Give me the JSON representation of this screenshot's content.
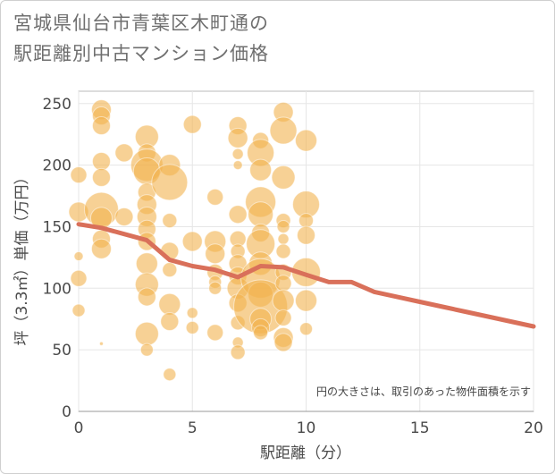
{
  "title_line1": "宮城県仙台市青葉区木町通の",
  "title_line2": "駅距離別中古マンション価格",
  "colors": {
    "bubble": "#f2b24f",
    "line": "#d9705a",
    "grid": "#e6e6e6",
    "frame": "#bbbbbb"
  },
  "chart_data": {
    "type": "scatter",
    "title": "宮城県仙台市青葉区木町通の駅距離別中古マンション価格",
    "xlabel": "駅距離（分）",
    "ylabel": "坪（3.3㎡）単価（万円）",
    "xlim": [
      0,
      20
    ],
    "ylim": [
      0,
      260
    ],
    "xticks": [
      0,
      5,
      10,
      15,
      20
    ],
    "yticks": [
      0,
      50,
      100,
      150,
      200,
      250
    ],
    "grid": true,
    "note": "円の大きさは、取引のあった物件面積を示す",
    "bubbles": [
      {
        "x": 0,
        "y": 192,
        "r": 9
      },
      {
        "x": 0,
        "y": 162,
        "r": 11
      },
      {
        "x": 0,
        "y": 126,
        "r": 5
      },
      {
        "x": 0,
        "y": 108,
        "r": 9
      },
      {
        "x": 0,
        "y": 82,
        "r": 7
      },
      {
        "x": 1,
        "y": 245,
        "r": 11
      },
      {
        "x": 1,
        "y": 240,
        "r": 10
      },
      {
        "x": 1,
        "y": 232,
        "r": 10
      },
      {
        "x": 1,
        "y": 203,
        "r": 10
      },
      {
        "x": 1,
        "y": 190,
        "r": 10
      },
      {
        "x": 1,
        "y": 164,
        "r": 19
      },
      {
        "x": 1,
        "y": 157,
        "r": 12
      },
      {
        "x": 1,
        "y": 140,
        "r": 10
      },
      {
        "x": 1,
        "y": 132,
        "r": 11
      },
      {
        "x": 1,
        "y": 55,
        "r": 2
      },
      {
        "x": 2,
        "y": 210,
        "r": 10
      },
      {
        "x": 2,
        "y": 158,
        "r": 10
      },
      {
        "x": 3,
        "y": 223,
        "r": 13
      },
      {
        "x": 3,
        "y": 210,
        "r": 10
      },
      {
        "x": 3,
        "y": 200,
        "r": 18
      },
      {
        "x": 3,
        "y": 195,
        "r": 15
      },
      {
        "x": 3,
        "y": 178,
        "r": 10
      },
      {
        "x": 3,
        "y": 168,
        "r": 11
      },
      {
        "x": 3,
        "y": 158,
        "r": 11
      },
      {
        "x": 3,
        "y": 148,
        "r": 10
      },
      {
        "x": 3,
        "y": 138,
        "r": 10
      },
      {
        "x": 3,
        "y": 120,
        "r": 12
      },
      {
        "x": 3,
        "y": 103,
        "r": 13
      },
      {
        "x": 3,
        "y": 93,
        "r": 10
      },
      {
        "x": 3,
        "y": 63,
        "r": 13
      },
      {
        "x": 3,
        "y": 50,
        "r": 7
      },
      {
        "x": 4,
        "y": 200,
        "r": 12
      },
      {
        "x": 4,
        "y": 186,
        "r": 20
      },
      {
        "x": 4,
        "y": 155,
        "r": 8
      },
      {
        "x": 4,
        "y": 130,
        "r": 10
      },
      {
        "x": 4,
        "y": 115,
        "r": 8
      },
      {
        "x": 4,
        "y": 87,
        "r": 12
      },
      {
        "x": 4,
        "y": 73,
        "r": 10
      },
      {
        "x": 4,
        "y": 30,
        "r": 7
      },
      {
        "x": 5,
        "y": 233,
        "r": 10
      },
      {
        "x": 5,
        "y": 138,
        "r": 11
      },
      {
        "x": 5,
        "y": 80,
        "r": 6
      },
      {
        "x": 5,
        "y": 68,
        "r": 7
      },
      {
        "x": 6,
        "y": 174,
        "r": 9
      },
      {
        "x": 6,
        "y": 138,
        "r": 12
      },
      {
        "x": 6,
        "y": 128,
        "r": 11
      },
      {
        "x": 6,
        "y": 113,
        "r": 9
      },
      {
        "x": 6,
        "y": 105,
        "r": 7
      },
      {
        "x": 6,
        "y": 100,
        "r": 7
      },
      {
        "x": 6,
        "y": 64,
        "r": 9
      },
      {
        "x": 7,
        "y": 232,
        "r": 10
      },
      {
        "x": 7,
        "y": 222,
        "r": 11
      },
      {
        "x": 7,
        "y": 209,
        "r": 6
      },
      {
        "x": 7,
        "y": 200,
        "r": 5
      },
      {
        "x": 7,
        "y": 160,
        "r": 10
      },
      {
        "x": 7,
        "y": 140,
        "r": 9
      },
      {
        "x": 7,
        "y": 130,
        "r": 8
      },
      {
        "x": 7,
        "y": 120,
        "r": 10
      },
      {
        "x": 7,
        "y": 110,
        "r": 10
      },
      {
        "x": 7,
        "y": 100,
        "r": 12
      },
      {
        "x": 7,
        "y": 88,
        "r": 10
      },
      {
        "x": 7,
        "y": 72,
        "r": 8
      },
      {
        "x": 7,
        "y": 56,
        "r": 6
      },
      {
        "x": 7,
        "y": 48,
        "r": 8
      },
      {
        "x": 8,
        "y": 220,
        "r": 9
      },
      {
        "x": 8,
        "y": 210,
        "r": 15
      },
      {
        "x": 8,
        "y": 196,
        "r": 12
      },
      {
        "x": 8,
        "y": 170,
        "r": 17
      },
      {
        "x": 8,
        "y": 160,
        "r": 14
      },
      {
        "x": 8,
        "y": 145,
        "r": 10
      },
      {
        "x": 8,
        "y": 136,
        "r": 16
      },
      {
        "x": 8,
        "y": 120,
        "r": 13
      },
      {
        "x": 8,
        "y": 108,
        "r": 22
      },
      {
        "x": 8,
        "y": 95,
        "r": 14
      },
      {
        "x": 8,
        "y": 85,
        "r": 30
      },
      {
        "x": 8,
        "y": 75,
        "r": 12
      },
      {
        "x": 8,
        "y": 68,
        "r": 10
      },
      {
        "x": 8,
        "y": 64,
        "r": 8
      },
      {
        "x": 9,
        "y": 243,
        "r": 11
      },
      {
        "x": 9,
        "y": 228,
        "r": 15
      },
      {
        "x": 9,
        "y": 190,
        "r": 13
      },
      {
        "x": 9,
        "y": 155,
        "r": 8
      },
      {
        "x": 9,
        "y": 150,
        "r": 7
      },
      {
        "x": 9,
        "y": 140,
        "r": 6
      },
      {
        "x": 9,
        "y": 130,
        "r": 8
      },
      {
        "x": 9,
        "y": 113,
        "r": 9
      },
      {
        "x": 9,
        "y": 104,
        "r": 9
      },
      {
        "x": 9,
        "y": 90,
        "r": 12
      },
      {
        "x": 9,
        "y": 76,
        "r": 9
      },
      {
        "x": 9,
        "y": 60,
        "r": 11
      },
      {
        "x": 9,
        "y": 56,
        "r": 10
      },
      {
        "x": 10,
        "y": 220,
        "r": 12
      },
      {
        "x": 10,
        "y": 168,
        "r": 15
      },
      {
        "x": 10,
        "y": 155,
        "r": 8
      },
      {
        "x": 10,
        "y": 143,
        "r": 10
      },
      {
        "x": 10,
        "y": 113,
        "r": 16
      },
      {
        "x": 10,
        "y": 90,
        "r": 12
      },
      {
        "x": 10,
        "y": 67,
        "r": 7
      }
    ],
    "series": [
      {
        "x": [
          0,
          1,
          2,
          3,
          4,
          5,
          6,
          7,
          8,
          9,
          10,
          11,
          12,
          13,
          14,
          15,
          16,
          17,
          18,
          19,
          20
        ],
        "y": [
          152,
          149,
          144,
          139,
          123,
          118,
          115,
          109,
          118,
          117,
          111,
          105,
          105,
          97,
          93,
          89,
          85,
          81,
          77,
          73,
          69
        ]
      }
    ]
  }
}
